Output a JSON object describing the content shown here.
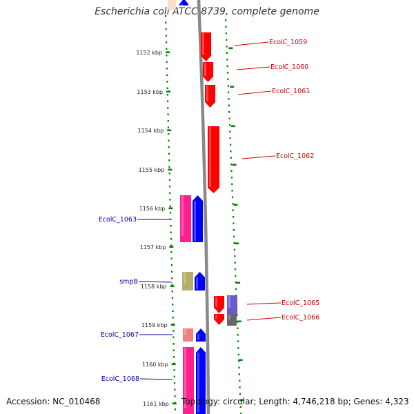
{
  "title": "Escherichia coli ATCC 8739, complete genome",
  "footer": {
    "accession": "Accession: NC_010468",
    "summary": "Topology: circular; Length: 4,746,218 bp; Genes: 4,323"
  },
  "kbp_labels": [
    "1152 kbp",
    "1153 kbp",
    "1154 kbp",
    "1155 kbp",
    "1156 kbp",
    "1157 kbp",
    "1158 kbp",
    "1159 kbp",
    "1160 kbp",
    "1161 kbp"
  ],
  "genes": [
    {
      "id": "g0",
      "label": "",
      "strand": "+",
      "color": "#0000ff"
    },
    {
      "id": "g1059",
      "label": "EcolC_1059",
      "strand": "-",
      "color": "#ff0000"
    },
    {
      "id": "g1060",
      "label": "EcolC_1060",
      "strand": "-",
      "color": "#ff0000"
    },
    {
      "id": "g1061",
      "label": "EcolC_1061",
      "strand": "-",
      "color": "#ff0000"
    },
    {
      "id": "g1062",
      "label": "EcolC_1062",
      "strand": "-",
      "color": "#ff0000"
    },
    {
      "id": "g1063",
      "label": "EcolC_1063",
      "strand": "+",
      "color": "#ff1f8f"
    },
    {
      "id": "g1063b",
      "label": "",
      "strand": "+",
      "color": "#0000ff"
    },
    {
      "id": "gsmpB",
      "label": "smpB",
      "strand": "+",
      "color": "#b5ad6b"
    },
    {
      "id": "gsmpBb",
      "label": "",
      "strand": "+",
      "color": "#0000ff"
    },
    {
      "id": "g1065",
      "label": "EcolC_1065",
      "strand": "-",
      "color": "#ff0000"
    },
    {
      "id": "g1065b",
      "label": "",
      "strand": "-",
      "color": "#6a5acd"
    },
    {
      "id": "g1066",
      "label": "EcolC_1066",
      "strand": "-",
      "color": "#ff0000"
    },
    {
      "id": "g1066b",
      "label": "",
      "strand": "-",
      "color": "#666666"
    },
    {
      "id": "g1067",
      "label": "EcolC_1067",
      "strand": "+",
      "color": "#f08080"
    },
    {
      "id": "g1067b",
      "label": "",
      "strand": "+",
      "color": "#0000ff"
    },
    {
      "id": "g1068",
      "label": "EcolC_1068",
      "strand": "+",
      "color": "#ff1f8f"
    },
    {
      "id": "g1068b",
      "label": "",
      "strand": "+",
      "color": "#0000ff"
    }
  ],
  "colors": {
    "forward_label": "#0000aa",
    "reverse_label": "#cc0000",
    "backbone": "#888888",
    "ticks": "#008000"
  }
}
